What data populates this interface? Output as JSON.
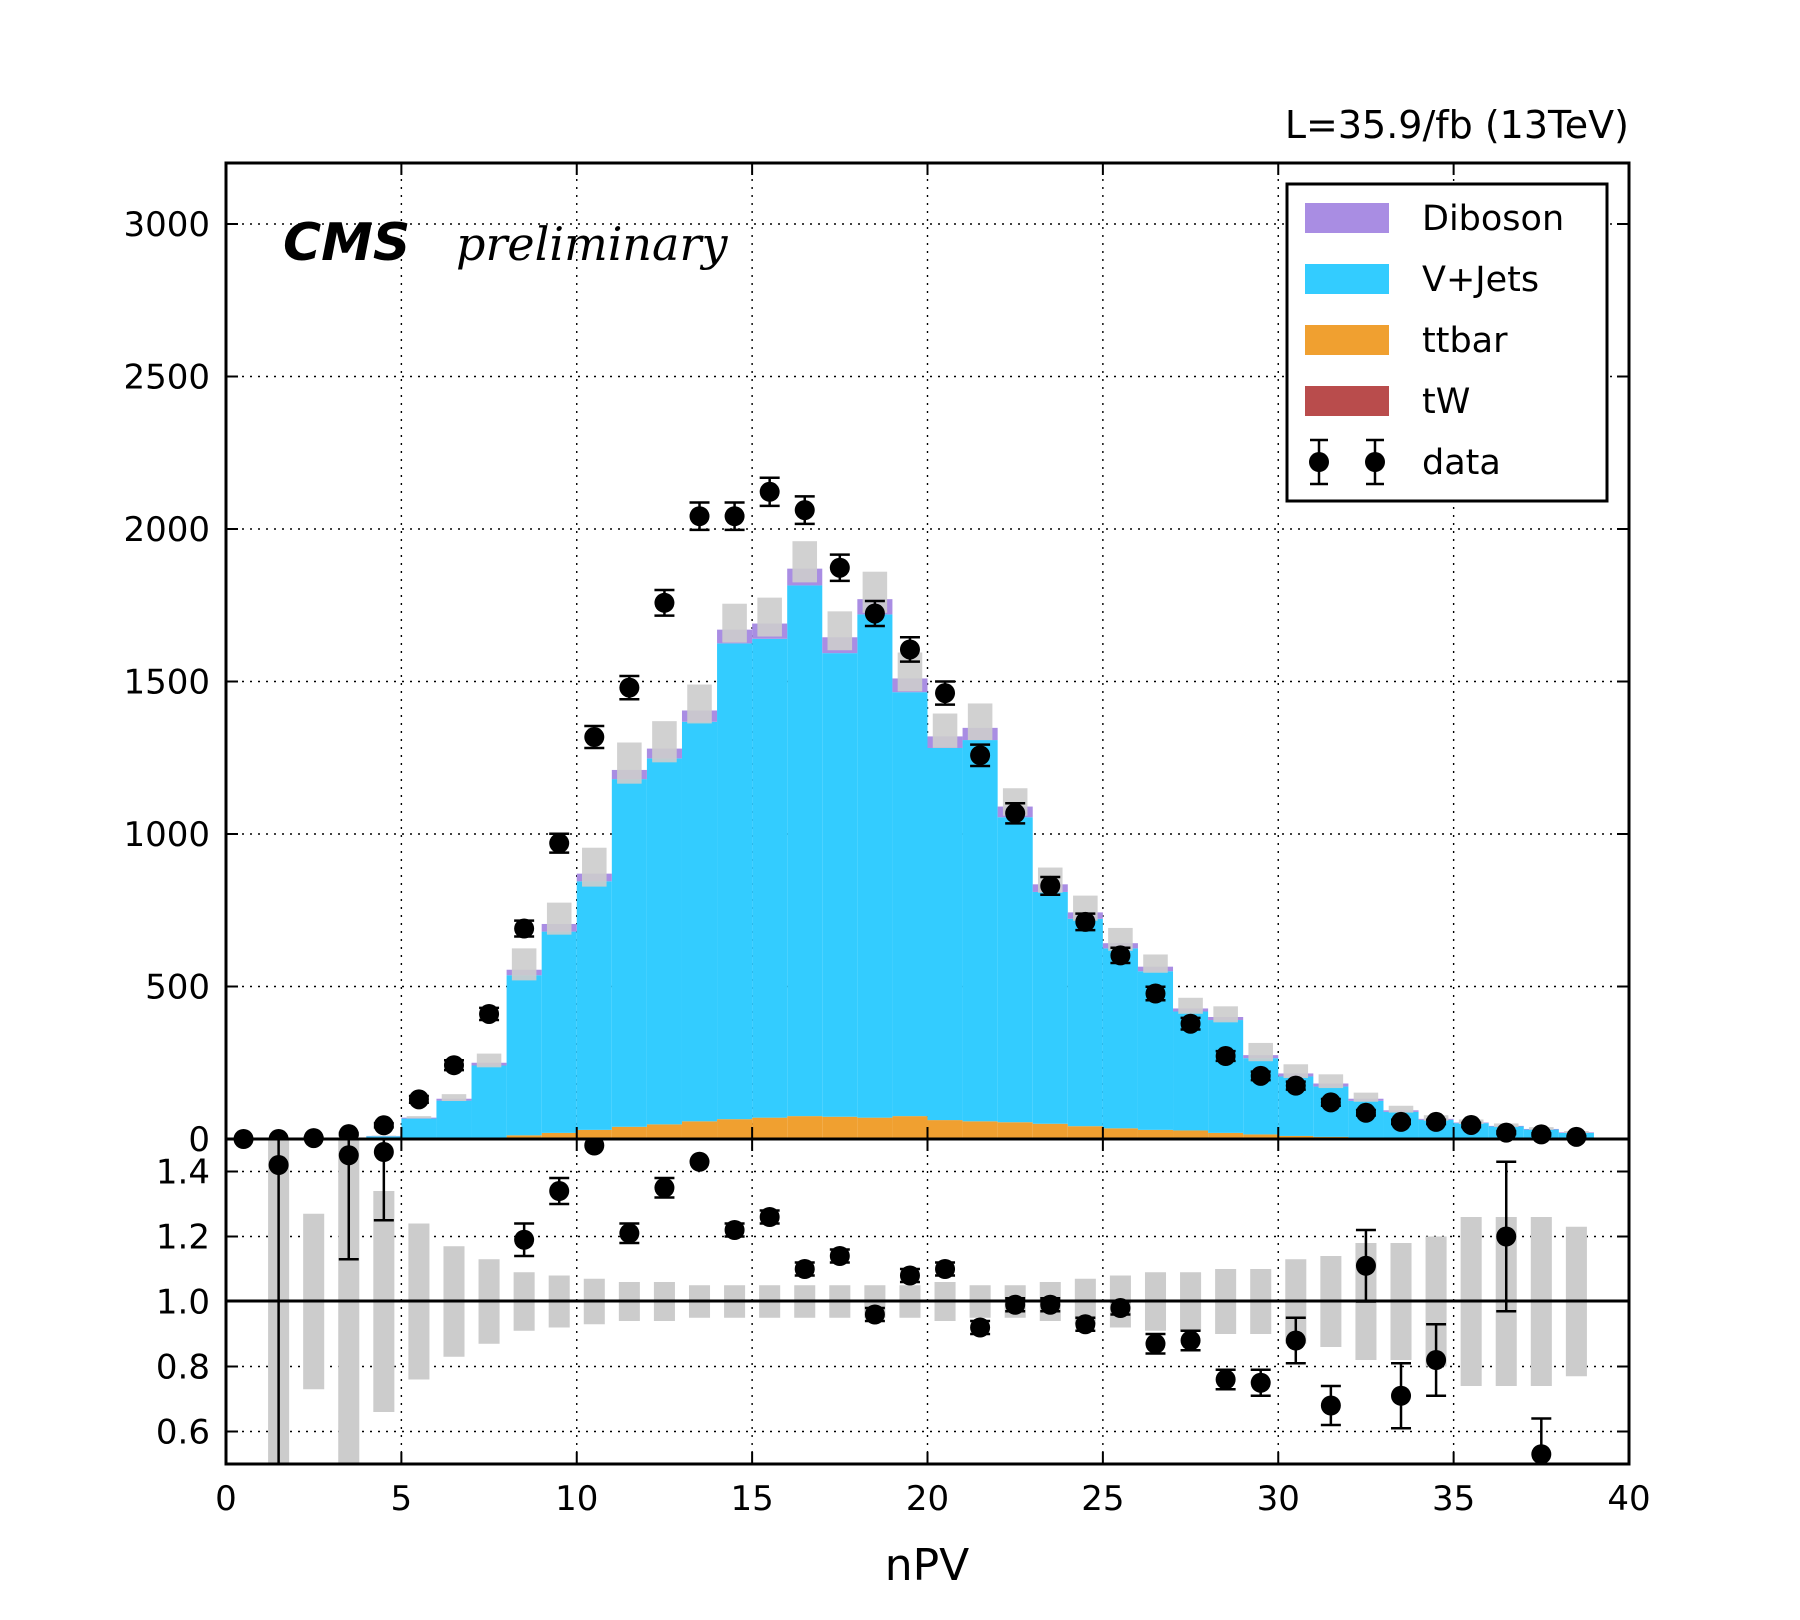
{
  "chart_data": [
    {
      "type": "bar",
      "panel": "main",
      "lumi_text": "L=35.9/fb (13TeV)",
      "cms_label": "CMS",
      "cms_sublabel": "preliminary",
      "xlabel": "",
      "ylabel": "",
      "xlim": [
        0,
        40
      ],
      "ylim": [
        0,
        3200
      ],
      "x_ticks": [
        0,
        5,
        10,
        15,
        20,
        25,
        30,
        35,
        40
      ],
      "y_ticks": [
        0,
        500,
        1000,
        1500,
        2000,
        2500,
        3000
      ],
      "grid": true,
      "stacked": true,
      "bin_edges": [
        0,
        1,
        2,
        3,
        4,
        5,
        6,
        7,
        8,
        9,
        10,
        11,
        12,
        13,
        14,
        15,
        16,
        17,
        18,
        19,
        20,
        21,
        22,
        23,
        24,
        25,
        26,
        27,
        28,
        29,
        30,
        31,
        32,
        33,
        34,
        35,
        36,
        37,
        38,
        39
      ],
      "series": [
        {
          "name": "tW",
          "color": "#b94c4c",
          "values": [
            0,
            0,
            0,
            0,
            0,
            0,
            0,
            0,
            0,
            0,
            0,
            0,
            0,
            0,
            0,
            0,
            0,
            0,
            0,
            0,
            0,
            0,
            0,
            0,
            0,
            0,
            0,
            0,
            0,
            0,
            0,
            0,
            0,
            0,
            0,
            0,
            0,
            0,
            0
          ]
        },
        {
          "name": "ttbar",
          "color": "#f0a030",
          "values": [
            0,
            0,
            0,
            0,
            0,
            1,
            3,
            5,
            12,
            20,
            30,
            40,
            48,
            58,
            65,
            70,
            75,
            73,
            70,
            75,
            62,
            58,
            55,
            50,
            42,
            35,
            30,
            28,
            20,
            15,
            10,
            7,
            5,
            4,
            3,
            2,
            1,
            1,
            0
          ]
        },
        {
          "name": "V+Jets",
          "color": "#33ccff",
          "values": [
            0,
            0,
            0,
            0,
            9,
            66,
            123,
            236,
            525,
            660,
            815,
            1140,
            1200,
            1310,
            1560,
            1570,
            1740,
            1520,
            1650,
            1390,
            1220,
            1250,
            1000,
            760,
            680,
            590,
            520,
            390,
            370,
            250,
            195,
            165,
            120,
            85,
            60,
            50,
            40,
            30,
            20
          ]
        },
        {
          "name": "Diboson",
          "color": "#a98de3",
          "values": [
            0,
            0,
            0,
            0,
            1,
            3,
            6,
            9,
            18,
            25,
            25,
            30,
            32,
            37,
            45,
            50,
            55,
            52,
            50,
            45,
            38,
            40,
            35,
            25,
            21,
            17,
            15,
            10,
            10,
            10,
            10,
            10,
            7,
            5,
            3,
            2,
            2,
            2,
            2
          ]
        }
      ],
      "data": {
        "name": "data",
        "x": [
          0.5,
          1.5,
          2.5,
          3.5,
          4.5,
          5.5,
          6.5,
          7.5,
          8.5,
          9.5,
          10.5,
          11.5,
          12.5,
          13.5,
          14.5,
          15.5,
          16.5,
          17.5,
          18.5,
          19.5,
          20.5,
          21.5,
          22.5,
          23.5,
          24.5,
          25.5,
          26.5,
          27.5,
          28.5,
          29.5,
          30.5,
          31.5,
          32.5,
          33.5,
          34.5,
          35.5,
          36.5,
          37.5,
          38.5
        ],
        "y": [
          0,
          0,
          3,
          16,
          45,
          130,
          242,
          410,
          690,
          970,
          1318,
          1480,
          1758,
          2042,
          2042,
          2122,
          2062,
          1873,
          1723,
          1605,
          1462,
          1258,
          1068,
          830,
          712,
          602,
          477,
          378,
          272,
          207,
          175,
          120,
          86,
          56,
          56,
          46,
          21,
          15,
          7
        ],
        "err": [
          0,
          0,
          2,
          4,
          7,
          11,
          16,
          20,
          26,
          31,
          36,
          38,
          42,
          45,
          45,
          46,
          45,
          43,
          41,
          40,
          38,
          35,
          33,
          29,
          27,
          25,
          22,
          19,
          16,
          14,
          13,
          11,
          9,
          7,
          7,
          7,
          5,
          4,
          3
        ]
      },
      "mc_uncertainty_band": {
        "color": "#cccccc",
        "up": [
          0,
          0,
          0,
          0,
          1,
          5,
          15,
          30,
          70,
          70,
          85,
          90,
          90,
          85,
          85,
          85,
          90,
          85,
          90,
          85,
          75,
          80,
          60,
          55,
          55,
          50,
          40,
          35,
          35,
          40,
          30,
          30,
          20,
          15,
          12,
          10,
          8,
          6,
          4
        ]
      }
    },
    {
      "type": "scatter",
      "panel": "ratio",
      "xlabel": "nPV",
      "ylabel": "",
      "xlim": [
        0,
        40
      ],
      "ylim": [
        0.5,
        1.5
      ],
      "x_ticks": [
        0,
        5,
        10,
        15,
        20,
        25,
        30,
        35,
        40
      ],
      "y_ticks": [
        0.6,
        0.8,
        1.0,
        1.2,
        1.4
      ],
      "y_tick_labels": [
        "0.6",
        "0.8",
        "1.0",
        "1.2",
        "1.4"
      ],
      "reference_line": 1.0,
      "grid": true,
      "ratio_points": {
        "x": [
          1.5,
          3.5,
          4.5,
          8.5,
          9.5,
          10.5,
          11.5,
          12.5,
          13.5,
          14.5,
          15.5,
          16.5,
          17.5,
          18.5,
          19.5,
          20.5,
          21.5,
          22.5,
          23.5,
          24.5,
          25.5,
          26.5,
          27.5,
          28.5,
          29.5,
          30.5,
          31.5,
          32.5,
          33.5,
          34.5,
          36.5,
          37.5
        ],
        "y": [
          1.42,
          1.45,
          1.46,
          1.19,
          1.34,
          1.48,
          1.21,
          1.35,
          1.43,
          1.22,
          1.26,
          1.1,
          1.14,
          0.96,
          1.08,
          1.1,
          0.92,
          0.99,
          0.99,
          0.93,
          0.98,
          0.87,
          0.88,
          0.76,
          0.75,
          0.88,
          0.68,
          1.11,
          0.71,
          0.82,
          1.2,
          0.53
        ],
        "err": [
          1.0,
          0.32,
          0.21,
          0.05,
          0.04,
          0.0,
          0.03,
          0.03,
          0.0,
          0.02,
          0.02,
          0.02,
          0.02,
          0.02,
          0.02,
          0.02,
          0.02,
          0.02,
          0.02,
          0.02,
          0.02,
          0.03,
          0.03,
          0.03,
          0.04,
          0.07,
          0.06,
          0.11,
          0.1,
          0.11,
          0.23,
          0.11
        ]
      },
      "uncertainty_band": {
        "x": [
          1.5,
          2.5,
          3.5,
          4.5,
          5.5,
          6.5,
          7.5,
          8.5,
          9.5,
          10.5,
          11.5,
          12.5,
          13.5,
          14.5,
          15.5,
          16.5,
          17.5,
          18.5,
          19.5,
          20.5,
          21.5,
          22.5,
          23.5,
          24.5,
          25.5,
          26.5,
          27.5,
          28.5,
          29.5,
          30.5,
          31.5,
          32.5,
          33.5,
          34.5,
          35.5,
          36.5,
          37.5,
          38.5
        ],
        "half_width": [
          0.65,
          0.27,
          0.65,
          0.34,
          0.24,
          0.17,
          0.13,
          0.09,
          0.08,
          0.07,
          0.06,
          0.06,
          0.05,
          0.05,
          0.05,
          0.05,
          0.05,
          0.05,
          0.05,
          0.06,
          0.05,
          0.05,
          0.06,
          0.07,
          0.08,
          0.09,
          0.09,
          0.1,
          0.1,
          0.13,
          0.14,
          0.18,
          0.18,
          0.2,
          0.26,
          0.26,
          0.26,
          0.23
        ]
      }
    }
  ],
  "legend": {
    "placement": "top-right",
    "entries": [
      {
        "label": "Diboson",
        "color": "#a98de3",
        "kind": "patch"
      },
      {
        "label": "V+Jets",
        "color": "#33ccff",
        "kind": "patch"
      },
      {
        "label": "ttbar",
        "color": "#f0a030",
        "kind": "patch"
      },
      {
        "label": "tW",
        "color": "#b94c4c",
        "kind": "patch"
      },
      {
        "label": "data",
        "color": "#000000",
        "kind": "marker"
      }
    ]
  }
}
